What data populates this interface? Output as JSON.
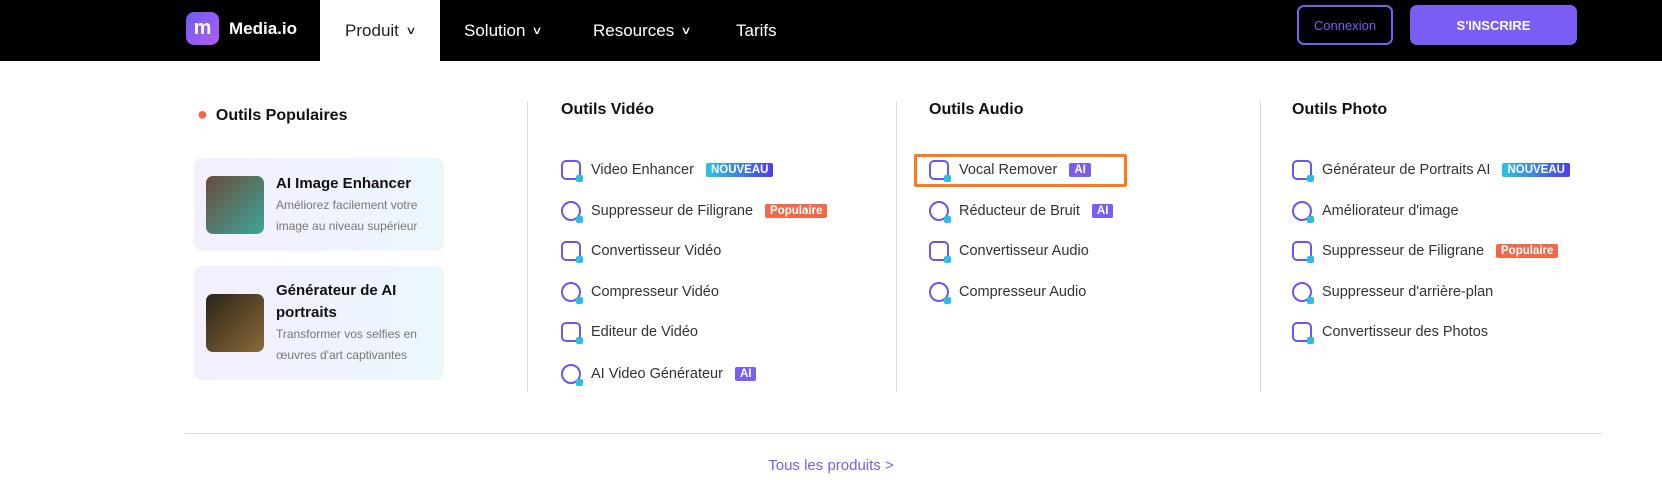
{
  "header": {
    "logo": "Media.io",
    "nav": [
      {
        "label": "Produit",
        "active": true
      },
      {
        "label": "Solution"
      },
      {
        "label": "Resources"
      },
      {
        "label": "Tarifs"
      }
    ],
    "login": "Connexion",
    "signup": "S'INSCRIRE"
  },
  "popular": {
    "title": "Outils Populaires",
    "cards": [
      {
        "title": "AI Image Enhancer",
        "desc": "Améliorez facilement votre image au niveau supérieur"
      },
      {
        "title": "Générateur de AI portraits",
        "desc": "Transformer vos selfies en œuvres d'art captivantes"
      }
    ]
  },
  "video": {
    "title": "Outils Vidéo",
    "items": [
      {
        "label": "Video Enhancer",
        "badge": "NOUVEAU"
      },
      {
        "label": "Suppresseur de Filigrane",
        "badge": "Populaire"
      },
      {
        "label": "Convertisseur Vidéo"
      },
      {
        "label": "Compresseur Vidéo"
      },
      {
        "label": "Editeur de Vidéo"
      },
      {
        "label": "AI Video Générateur",
        "badge": "AI"
      }
    ]
  },
  "audio": {
    "title": "Outils Audio",
    "items": [
      {
        "label": "Vocal Remover",
        "badge": "AI"
      },
      {
        "label": "Réducteur de Bruit",
        "badge": "AI"
      },
      {
        "label": "Convertisseur Audio"
      },
      {
        "label": "Compresseur Audio"
      }
    ]
  },
  "photo": {
    "title": "Outils Photo",
    "items": [
      {
        "label": "Générateur de Portraits AI",
        "badge": "NOUVEAU"
      },
      {
        "label": "Améliorateur d'image"
      },
      {
        "label": "Suppresseur de Filigrane",
        "badge": "Populaire"
      },
      {
        "label": "Suppresseur d'arrière-plan"
      },
      {
        "label": "Convertisseur des Photos"
      }
    ]
  },
  "footer_link": "Tous les produits >",
  "colors": {
    "accent": "#7b5cf5",
    "highlight": "#ff7a1a",
    "popular": "#f2694a"
  }
}
